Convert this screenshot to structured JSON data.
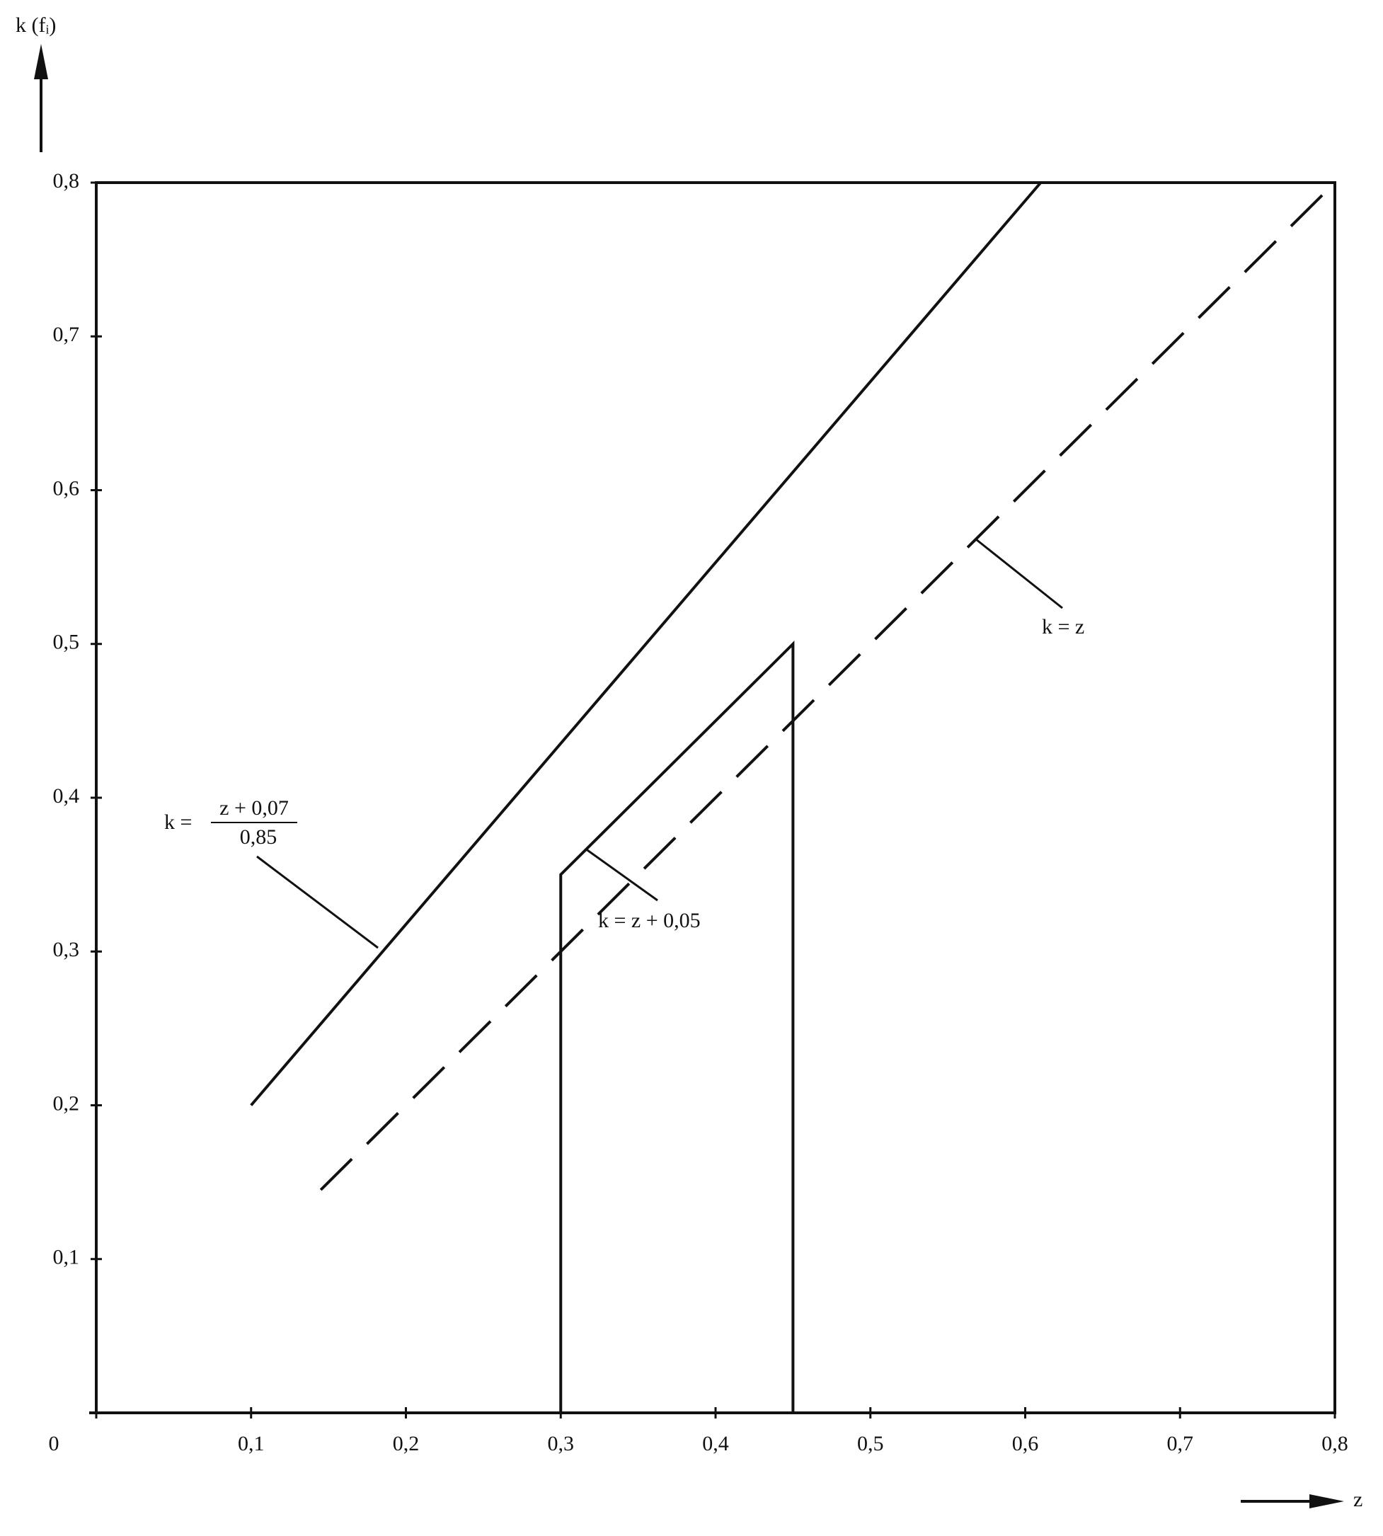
{
  "chart_data": {
    "type": "line",
    "y_label": "k (fᵢ)",
    "x_label": "z",
    "series": [
      {
        "name": "k = (z + 0,07)/0,85",
        "color": "#111111",
        "dashed": false,
        "x": [
          0.1,
          0.61
        ],
        "values": [
          0.2,
          0.8
        ]
      },
      {
        "name": "k = z",
        "color": "#111111",
        "dashed": true,
        "x": [
          0.145,
          0.8
        ],
        "values": [
          0.145,
          0.8
        ]
      },
      {
        "name": "k = z + 0,05",
        "color": "#111111",
        "dashed": false,
        "x": [
          0.3,
          0.3,
          0.45,
          0.45
        ],
        "values": [
          0,
          0.35,
          0.5,
          0
        ]
      }
    ],
    "annotations": [
      {
        "lead": "k =",
        "numerator": "z + 0,07",
        "denominator": "0,85"
      },
      {
        "text": "k = z"
      },
      {
        "text": "k = z + 0,05"
      }
    ],
    "xlim": [
      0,
      0.8
    ],
    "ylim": [
      0,
      0.8
    ],
    "xticks": [
      0,
      {
        "value": 0.1,
        "label": "0,1"
      },
      {
        "value": 0.2,
        "label": "0,2"
      },
      {
        "value": 0.3,
        "label": "0,3"
      },
      {
        "value": 0.4,
        "label": "0,4"
      },
      {
        "value": 0.5,
        "label": "0,5"
      },
      {
        "value": 0.6,
        "label": "0,6"
      },
      {
        "value": 0.7,
        "label": "0,7"
      },
      {
        "value": 0.8,
        "label": "0,8"
      }
    ],
    "yticks": [
      {
        "value": 0.1,
        "label": "0,1"
      },
      {
        "value": 0.2,
        "label": "0,2"
      },
      {
        "value": 0.3,
        "label": "0,3"
      },
      {
        "value": 0.4,
        "label": "0,4"
      },
      {
        "value": 0.5,
        "label": "0,5"
      },
      {
        "value": 0.6,
        "label": "0,6"
      },
      {
        "value": 0.7,
        "label": "0,7"
      },
      {
        "value": 0.8,
        "label": "0,8"
      }
    ],
    "grid": false
  }
}
